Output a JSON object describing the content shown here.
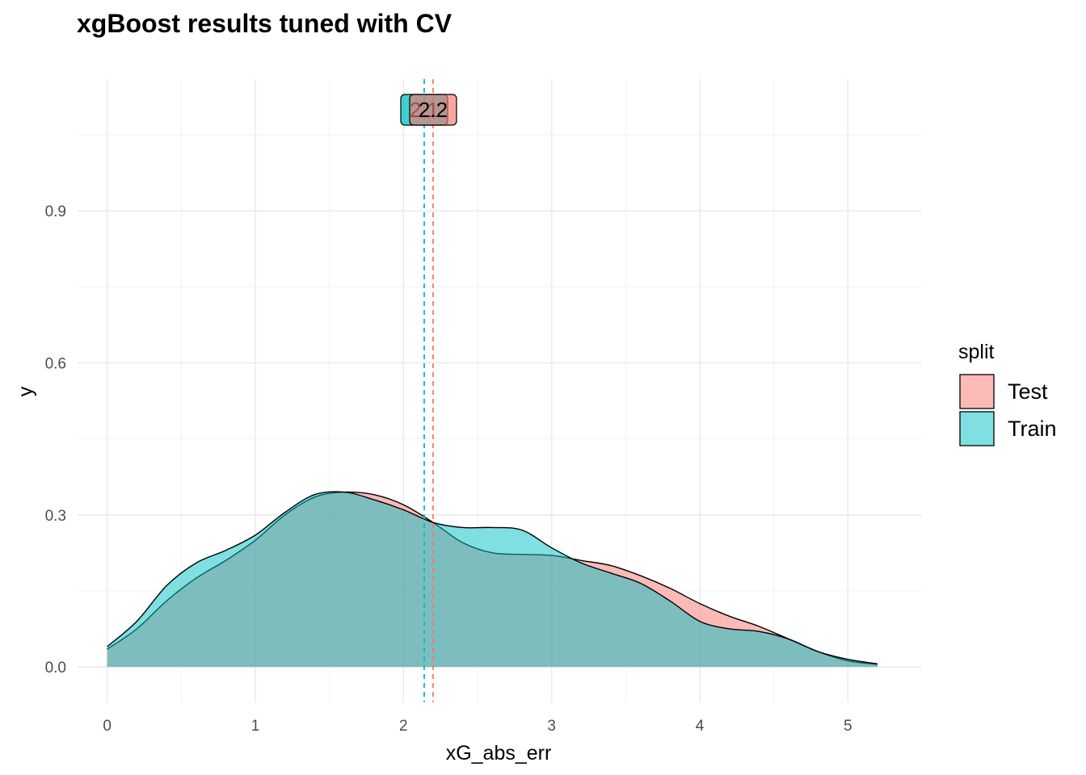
{
  "chart_data": {
    "type": "area",
    "title": "xgBoost results tuned with CV",
    "xlabel": "xG_abs_err",
    "ylabel": "y",
    "xlim": [
      -0.2,
      5.5
    ],
    "ylim": [
      -0.07,
      1.16
    ],
    "x_ticks": [
      0,
      1,
      2,
      3,
      4,
      5
    ],
    "x_tick_labels": [
      "0",
      "1",
      "2",
      "3",
      "4",
      "5"
    ],
    "y_ticks": [
      0.0,
      0.3,
      0.6,
      0.9
    ],
    "y_tick_labels": [
      "0.0",
      "0.3",
      "0.6",
      "0.9"
    ],
    "grid": true,
    "legend": {
      "title": "split",
      "position": "right"
    },
    "series": [
      {
        "name": "Test",
        "color": "#F8766D",
        "x": [
          0.0,
          0.2,
          0.4,
          0.6,
          0.8,
          1.0,
          1.2,
          1.4,
          1.6,
          1.8,
          2.0,
          2.2,
          2.4,
          2.6,
          2.8,
          3.0,
          3.2,
          3.4,
          3.6,
          3.8,
          4.0,
          4.2,
          4.4,
          4.6,
          4.8,
          5.0,
          5.2
        ],
        "values": [
          0.035,
          0.075,
          0.13,
          0.175,
          0.21,
          0.25,
          0.3,
          0.335,
          0.345,
          0.34,
          0.32,
          0.285,
          0.245,
          0.225,
          0.222,
          0.22,
          0.21,
          0.2,
          0.18,
          0.155,
          0.125,
          0.1,
          0.08,
          0.055,
          0.03,
          0.012,
          0.005
        ],
        "mean": 2.2,
        "mean_label": "2.2"
      },
      {
        "name": "Train",
        "color": "#00BFC4",
        "x": [
          0.0,
          0.2,
          0.4,
          0.6,
          0.8,
          1.0,
          1.2,
          1.4,
          1.6,
          1.8,
          2.0,
          2.2,
          2.4,
          2.6,
          2.8,
          3.0,
          3.2,
          3.4,
          3.6,
          3.8,
          4.0,
          4.2,
          4.4,
          4.6,
          4.8,
          5.0,
          5.2
        ],
        "values": [
          0.04,
          0.09,
          0.16,
          0.205,
          0.23,
          0.26,
          0.305,
          0.34,
          0.345,
          0.33,
          0.31,
          0.285,
          0.275,
          0.275,
          0.27,
          0.235,
          0.205,
          0.185,
          0.165,
          0.13,
          0.09,
          0.075,
          0.07,
          0.055,
          0.03,
          0.015,
          0.006
        ],
        "mean": 2.14,
        "mean_label": "2.1"
      }
    ]
  }
}
